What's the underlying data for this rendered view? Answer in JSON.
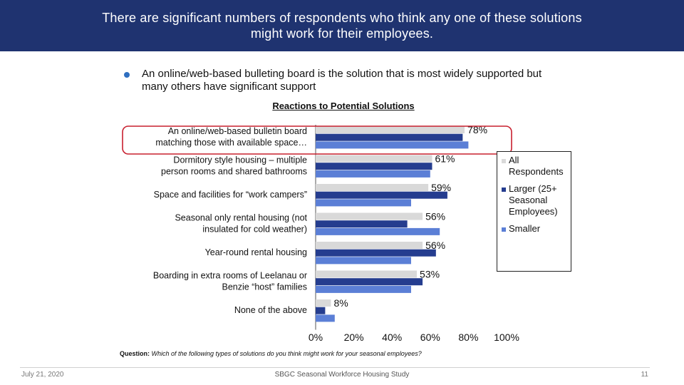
{
  "header": {
    "title": "There are significant numbers of respondents who think any one of these solutions might work for their employees."
  },
  "bullet": {
    "text": "An online/web-based bulleting board is the solution that is most widely supported but many others have significant support"
  },
  "chart_data": {
    "type": "bar",
    "orientation": "horizontal",
    "title": "Reactions to Potential Solutions",
    "categories": [
      [
        "An online/web-based bulletin board",
        "matching those with available space…"
      ],
      [
        "Dormitory style housing – multiple",
        "person rooms and shared bathrooms"
      ],
      [
        "Space and facilities for “work campers”"
      ],
      [
        "Seasonal only rental housing (not",
        "insulated for cold weather)"
      ],
      [
        "Year-round rental housing"
      ],
      [
        "Boarding in extra rooms of Leelanau or",
        "Benzie “host” families"
      ],
      [
        "None of the above"
      ]
    ],
    "series": [
      {
        "name": "All Respondents",
        "legend_lines": [
          "All",
          "Respondents"
        ],
        "color": "#d9d9d9",
        "values": [
          78,
          61,
          59,
          56,
          56,
          53,
          8
        ]
      },
      {
        "name": "Larger (25+ Seasonal Employees)",
        "legend_lines": [
          "Larger (25+",
          "Seasonal",
          "Employees)"
        ],
        "color": "#253d8f",
        "values": [
          77,
          61,
          69,
          48,
          63,
          56,
          5
        ]
      },
      {
        "name": "Smaller",
        "legend_lines": [
          "Smaller"
        ],
        "color": "#5b7fd6",
        "values": [
          80,
          60,
          50,
          65,
          50,
          50,
          10
        ]
      }
    ],
    "data_labels": [
      "78%",
      "61%",
      "59%",
      "56%",
      "56%",
      "53%",
      "8%"
    ],
    "x_ticks": [
      "0%",
      "20%",
      "40%",
      "60%",
      "80%",
      "100%"
    ],
    "xlim": [
      0,
      100
    ],
    "grid": false,
    "legend_position": "right",
    "highlight_category_index": 0,
    "highlight_color": "#c8202f"
  },
  "question": {
    "label": "Question:",
    "text": "Which of the following types of solutions do you think might work for your seasonal employees?"
  },
  "footer": {
    "date": "July 21, 2020",
    "center": "SBGC Seasonal Workforce Housing Study",
    "page": "11"
  }
}
